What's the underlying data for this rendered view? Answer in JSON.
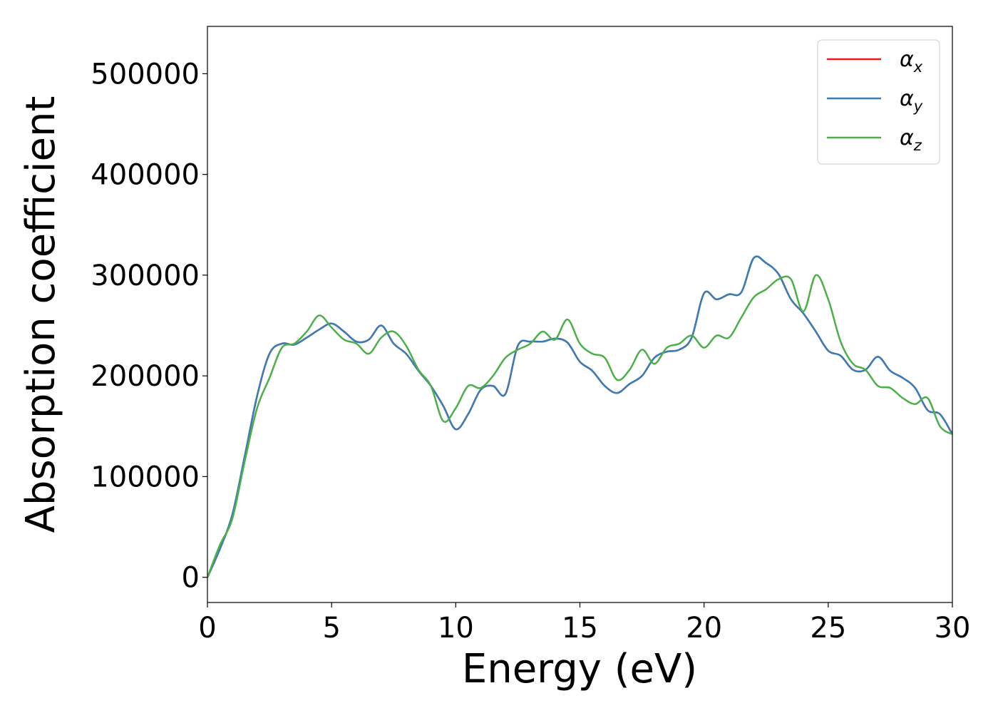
{
  "chart_data": {
    "type": "line",
    "title": "",
    "xlabel": "Energy (eV)",
    "ylabel": "Absorption coefficient",
    "xlim": [
      0,
      30
    ],
    "ylim": [
      -25000,
      547000
    ],
    "xticks": [
      0,
      5,
      10,
      15,
      20,
      25,
      30
    ],
    "yticks": [
      0,
      100000,
      200000,
      300000,
      400000,
      500000
    ],
    "xtick_labels": [
      "0",
      "5",
      "10",
      "15",
      "20",
      "25",
      "30"
    ],
    "ytick_labels": [
      "0",
      "100000",
      "200000",
      "300000",
      "400000",
      "500000"
    ],
    "grid": false,
    "legend_position": "top-right",
    "series": [
      {
        "name": "α",
        "subscript": "x",
        "color": "#e41a1c",
        "x": [
          0,
          0.5,
          1,
          1.5,
          2,
          2.5,
          3,
          3.5,
          4,
          4.5,
          5,
          5.5,
          6,
          6.5,
          7,
          7.5,
          8,
          8.5,
          9,
          9.5,
          10,
          10.5,
          11,
          11.5,
          12,
          12.5,
          13,
          13.5,
          14,
          14.5,
          15,
          15.5,
          16,
          16.5,
          17,
          17.5,
          18,
          18.5,
          19,
          19.5,
          20,
          20.5,
          21,
          21.5,
          22,
          22.5,
          23,
          23.5,
          24,
          24.5,
          25,
          25.5,
          26,
          26.5,
          27,
          27.5,
          28,
          28.5,
          29,
          29.5,
          30
        ],
        "y": [
          0,
          28000,
          62000,
          120000,
          180000,
          222000,
          232000,
          231000,
          238000,
          246000,
          252000,
          244000,
          234000,
          236000,
          250000,
          232000,
          222000,
          205000,
          190000,
          170000,
          147000,
          162000,
          186000,
          190000,
          182000,
          230000,
          234000,
          234000,
          237000,
          233000,
          214000,
          205000,
          190000,
          183000,
          192000,
          200000,
          218000,
          224000,
          226000,
          238000,
          282000,
          276000,
          281000,
          283000,
          317000,
          312000,
          301000,
          276000,
          262000,
          244000,
          225000,
          220000,
          206000,
          206000,
          219000,
          205000,
          198000,
          188000,
          166000,
          162000,
          142000
        ]
      },
      {
        "name": "α",
        "subscript": "y",
        "color": "#377eb8",
        "x": [
          0,
          0.5,
          1,
          1.5,
          2,
          2.5,
          3,
          3.5,
          4,
          4.5,
          5,
          5.5,
          6,
          6.5,
          7,
          7.5,
          8,
          8.5,
          9,
          9.5,
          10,
          10.5,
          11,
          11.5,
          12,
          12.5,
          13,
          13.5,
          14,
          14.5,
          15,
          15.5,
          16,
          16.5,
          17,
          17.5,
          18,
          18.5,
          19,
          19.5,
          20,
          20.5,
          21,
          21.5,
          22,
          22.5,
          23,
          23.5,
          24,
          24.5,
          25,
          25.5,
          26,
          26.5,
          27,
          27.5,
          28,
          28.5,
          29,
          29.5,
          30
        ],
        "y": [
          0,
          28000,
          62000,
          120000,
          180000,
          222000,
          232000,
          231000,
          238000,
          246000,
          252000,
          244000,
          234000,
          236000,
          250000,
          232000,
          222000,
          205000,
          190000,
          170000,
          147000,
          162000,
          186000,
          190000,
          182000,
          230000,
          234000,
          234000,
          237000,
          233000,
          214000,
          205000,
          190000,
          183000,
          192000,
          200000,
          218000,
          224000,
          226000,
          238000,
          282000,
          276000,
          281000,
          283000,
          317000,
          312000,
          301000,
          276000,
          262000,
          244000,
          225000,
          220000,
          206000,
          206000,
          219000,
          205000,
          198000,
          188000,
          166000,
          162000,
          142000
        ]
      },
      {
        "name": "α",
        "subscript": "z",
        "color": "#4daf4a",
        "x": [
          0,
          0.5,
          1,
          1.5,
          2,
          2.5,
          3,
          3.5,
          4,
          4.5,
          5,
          5.5,
          6,
          6.5,
          7,
          7.5,
          8,
          8.5,
          9,
          9.5,
          10,
          10.5,
          11,
          11.5,
          12,
          12.5,
          13,
          13.5,
          14,
          14.5,
          15,
          15.5,
          16,
          16.5,
          17,
          17.5,
          18,
          18.5,
          19,
          19.5,
          20,
          20.5,
          21,
          21.5,
          22,
          22.5,
          23,
          23.5,
          24,
          24.5,
          25,
          25.5,
          26,
          26.5,
          27,
          27.5,
          28,
          28.5,
          29,
          29.5,
          30
        ],
        "y": [
          0,
          32000,
          58000,
          115000,
          168000,
          198000,
          228000,
          232000,
          244000,
          260000,
          248000,
          236000,
          232000,
          222000,
          238000,
          244000,
          230000,
          206000,
          190000,
          155000,
          168000,
          190000,
          188000,
          200000,
          218000,
          226000,
          232000,
          244000,
          236000,
          256000,
          232000,
          222000,
          218000,
          196000,
          206000,
          226000,
          212000,
          228000,
          232000,
          240000,
          228000,
          240000,
          238000,
          258000,
          278000,
          286000,
          296000,
          296000,
          264000,
          300000,
          276000,
          234000,
          212000,
          206000,
          190000,
          188000,
          178000,
          172000,
          178000,
          150000,
          142000
        ]
      }
    ]
  }
}
